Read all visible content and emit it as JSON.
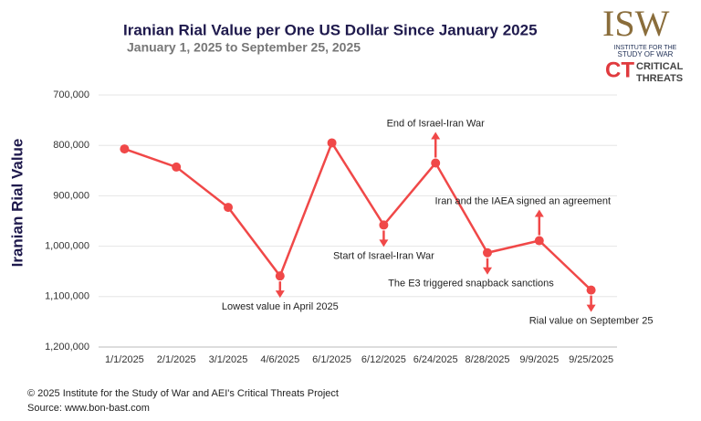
{
  "chart_data": {
    "type": "line",
    "title": "Iranian Rial Value per One US Dollar Since January 2025",
    "subtitle": "January 1, 2025 to September 25, 2025",
    "y_label": "Iranian Rial Value",
    "categories": [
      "1/1/2025",
      "2/1/2025",
      "3/1/2025",
      "4/6/2025",
      "6/1/2025",
      "6/12/2025",
      "6/24/2025",
      "8/28/2025",
      "9/9/2025",
      "9/25/2025"
    ],
    "series": [
      {
        "name": "Iranian Rial Value",
        "color": "#f04848",
        "values": [
          807000,
          843000,
          923000,
          1059000,
          795000,
          958000,
          835000,
          1013000,
          989000,
          1087000
        ]
      }
    ],
    "ylim": [
      700000,
      1200000
    ],
    "y_inverted": true,
    "yticks": [
      {
        "value": 700000,
        "label": "700,000"
      },
      {
        "value": 800000,
        "label": "800,000"
      },
      {
        "value": 900000,
        "label": "900,000"
      },
      {
        "value": 1000000,
        "label": "1,000,000"
      },
      {
        "value": 1100000,
        "label": "1,100,000"
      },
      {
        "value": 1200000,
        "label": "1,200,000"
      }
    ],
    "grid": true,
    "annotations": [
      {
        "text": "Lowest value in April 2025",
        "x": "4/6/2025",
        "arrow": "down"
      },
      {
        "text": "Start of Israel-Iran War",
        "x": "6/12/2025",
        "arrow": "down"
      },
      {
        "text": "End of Israel-Iran War",
        "x": "6/24/2025",
        "arrow": "up"
      },
      {
        "text": "The E3 triggered snapback sanctions",
        "x": "8/28/2025",
        "arrow": "down"
      },
      {
        "text": "Iran and the IAEA signed an agreement",
        "x": "9/9/2025",
        "arrow": "up"
      },
      {
        "text": "Rial value on September 25",
        "x": "9/25/2025",
        "arrow": "down"
      }
    ]
  },
  "logos": {
    "isw": "ISW",
    "isw_name_1": "INSTITUTE FOR THE",
    "isw_name_2": "STUDY OF WAR",
    "ct": "CT",
    "ct_name_1": "CRITICAL",
    "ct_name_2": "THREATS"
  },
  "footer": {
    "copyright": "© 2025 Institute for the Study of War and AEI's Critical Threats Project",
    "source": "Source: www.bon-bast.com"
  }
}
